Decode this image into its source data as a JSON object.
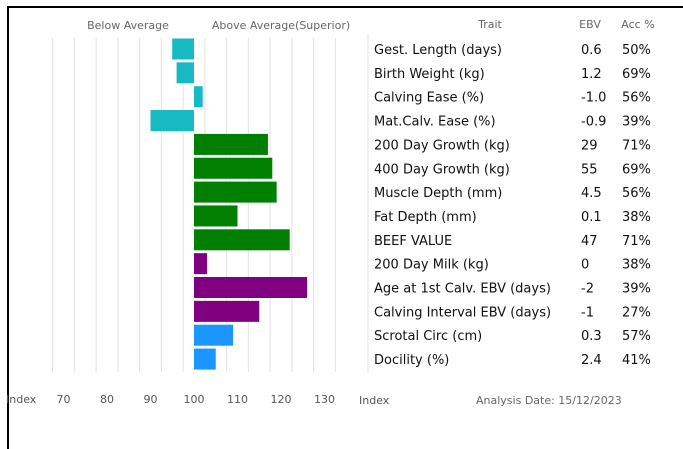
{
  "headers": {
    "below": "Below Average",
    "above": "Above Average(Superior)",
    "trait": "Trait",
    "ebv": "EBV",
    "acc": "Acc %"
  },
  "axis": {
    "left_label": "Index",
    "right_label": "Index",
    "ticks": [
      70,
      80,
      90,
      100,
      110,
      120,
      130
    ]
  },
  "analysis_date": "Analysis Date: 15/12/2023",
  "colors": {
    "teal": "#17b9c3",
    "green": "#007f00",
    "purple": "#800080",
    "blue": "#1c96ff"
  },
  "chart_data": {
    "type": "bar",
    "orientation": "horizontal",
    "baseline": 100,
    "xlim": [
      65,
      135
    ],
    "rows": [
      {
        "trait": "Gest. Length (days)",
        "ebv": "0.6",
        "acc": "50%",
        "index": 95,
        "color": "teal"
      },
      {
        "trait": "Birth Weight (kg)",
        "ebv": "1.2",
        "acc": "69%",
        "index": 96,
        "color": "teal"
      },
      {
        "trait": "Calving Ease (%)",
        "ebv": "-1.0",
        "acc": "56%",
        "index": 102,
        "color": "teal"
      },
      {
        "trait": "Mat.Calv. Ease (%)",
        "ebv": "-0.9",
        "acc": "39%",
        "index": 90,
        "color": "teal"
      },
      {
        "trait": "200 Day Growth (kg)",
        "ebv": "29",
        "acc": "71%",
        "index": 117,
        "color": "green"
      },
      {
        "trait": "400 Day Growth (kg)",
        "ebv": "55",
        "acc": "69%",
        "index": 118,
        "color": "green"
      },
      {
        "trait": "Muscle Depth (mm)",
        "ebv": "4.5",
        "acc": "56%",
        "index": 119,
        "color": "green"
      },
      {
        "trait": "Fat Depth (mm)",
        "ebv": "0.1",
        "acc": "38%",
        "index": 110,
        "color": "green"
      },
      {
        "trait": "BEEF VALUE",
        "ebv": "47",
        "acc": "71%",
        "index": 122,
        "color": "green"
      },
      {
        "trait": "200 Day Milk (kg)",
        "ebv": "0",
        "acc": "38%",
        "index": 103,
        "color": "purple"
      },
      {
        "trait": "Age at 1st Calv. EBV (days)",
        "ebv": "-2",
        "acc": "39%",
        "index": 126,
        "color": "purple"
      },
      {
        "trait": "Calving Interval EBV (days)",
        "ebv": "-1",
        "acc": "27%",
        "index": 115,
        "color": "purple"
      },
      {
        "trait": "Scrotal Circ (cm)",
        "ebv": "0.3",
        "acc": "57%",
        "index": 109,
        "color": "blue"
      },
      {
        "trait": "Docility (%)",
        "ebv": "2.4",
        "acc": "41%",
        "index": 105,
        "color": "blue"
      }
    ]
  }
}
